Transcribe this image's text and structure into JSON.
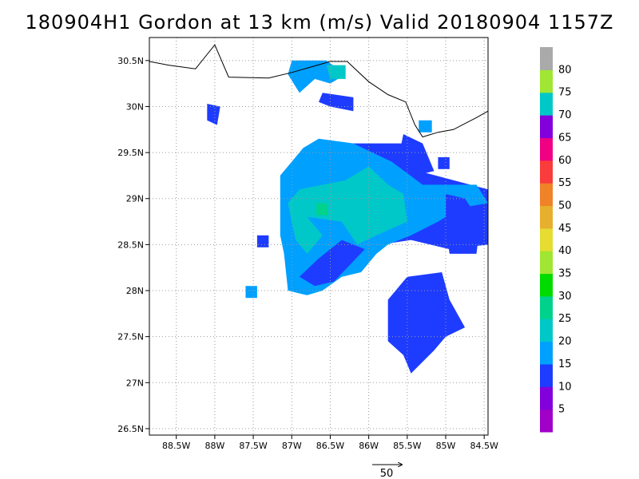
{
  "chart_data": {
    "type": "heatmap",
    "title": "180904H1 Gordon at 13 km (m/s) Valid 20180904 1157Z",
    "lon_range": [
      -88.85,
      -84.45
    ],
    "lat_range": [
      26.43,
      30.75
    ],
    "x_ticks": [
      {
        "value": -88.5,
        "label": "88.5W"
      },
      {
        "value": -88.0,
        "label": "88W"
      },
      {
        "value": -87.5,
        "label": "87.5W"
      },
      {
        "value": -87.0,
        "label": "87W"
      },
      {
        "value": -86.5,
        "label": "86.5W"
      },
      {
        "value": -86.0,
        "label": "86W"
      },
      {
        "value": -85.5,
        "label": "85.5W"
      },
      {
        "value": -85.0,
        "label": "85W"
      },
      {
        "value": -84.5,
        "label": "84.5W"
      }
    ],
    "y_ticks": [
      {
        "value": 30.5,
        "label": "30.5N"
      },
      {
        "value": 30.0,
        "label": "30N"
      },
      {
        "value": 29.5,
        "label": "29.5N"
      },
      {
        "value": 29.0,
        "label": "29N"
      },
      {
        "value": 28.5,
        "label": "28.5N"
      },
      {
        "value": 28.0,
        "label": "28N"
      },
      {
        "value": 27.5,
        "label": "27.5N"
      },
      {
        "value": 27.0,
        "label": "27N"
      },
      {
        "value": 26.5,
        "label": "26.5N"
      }
    ],
    "grid": true,
    "colorbar": {
      "levels": [
        5,
        10,
        15,
        20,
        25,
        30,
        35,
        40,
        45,
        50,
        55,
        60,
        65,
        70,
        75,
        80
      ],
      "labels": [
        "5",
        "10",
        "15",
        "20",
        "25",
        "30",
        "35",
        "40",
        "45",
        "50",
        "55",
        "60",
        "65",
        "70",
        "75",
        "80"
      ],
      "colors": [
        "#a000c8",
        "#8200dc",
        "#1e3cff",
        "#00a0ff",
        "#00c8c8",
        "#00d28c",
        "#00dc00",
        "#a0e632",
        "#e6dc32",
        "#e6af2d",
        "#f08228",
        "#fa3c3c",
        "#f00082",
        "#8200dc",
        "#00c8c8",
        "#a0e632",
        "#aaaaaa"
      ]
    },
    "coastline": [
      [
        -88.85,
        30.49
      ],
      [
        -88.6,
        30.45
      ],
      [
        -88.25,
        30.41
      ],
      [
        -88.0,
        30.67
      ],
      [
        -87.82,
        30.32
      ],
      [
        -87.3,
        30.31
      ],
      [
        -87.0,
        30.37
      ],
      [
        -86.5,
        30.49
      ],
      [
        -86.28,
        30.49
      ],
      [
        -86.0,
        30.27
      ],
      [
        -85.75,
        30.13
      ],
      [
        -85.52,
        30.05
      ],
      [
        -85.4,
        29.8
      ],
      [
        -85.3,
        29.67
      ],
      [
        -85.1,
        29.72
      ],
      [
        -84.9,
        29.75
      ],
      [
        -84.6,
        29.88
      ],
      [
        -84.45,
        29.95
      ]
    ],
    "wind_vector_reference": {
      "label": "50"
    },
    "regions": [
      {
        "bin": 10,
        "points": [
          [
            -86.2,
            29.6
          ],
          [
            -85.55,
            29.6
          ],
          [
            -85.35,
            29.3
          ],
          [
            -84.45,
            29.1
          ],
          [
            -84.45,
            28.5
          ],
          [
            -84.95,
            28.45
          ],
          [
            -85.45,
            28.55
          ],
          [
            -85.85,
            28.5
          ],
          [
            -86.25,
            28.3
          ],
          [
            -86.55,
            28.15
          ],
          [
            -86.85,
            28.0
          ],
          [
            -86.9,
            28.3
          ],
          [
            -86.7,
            28.3
          ],
          [
            -86.9,
            28.7
          ],
          [
            -86.95,
            29.2
          ],
          [
            -86.85,
            29.55
          ]
        ]
      },
      {
        "bin": 15,
        "points": [
          [
            -86.65,
            29.65
          ],
          [
            -86.2,
            29.6
          ],
          [
            -85.7,
            29.4
          ],
          [
            -85.3,
            29.15
          ],
          [
            -84.6,
            29.15
          ],
          [
            -84.45,
            28.95
          ],
          [
            -84.8,
            28.9
          ],
          [
            -85.1,
            28.75
          ],
          [
            -85.45,
            28.6
          ],
          [
            -85.75,
            28.5
          ],
          [
            -85.9,
            28.4
          ],
          [
            -86.1,
            28.2
          ],
          [
            -86.35,
            28.15
          ],
          [
            -86.6,
            28.0
          ],
          [
            -86.8,
            27.95
          ],
          [
            -87.05,
            28.0
          ],
          [
            -87.1,
            28.4
          ],
          [
            -87.15,
            28.6
          ],
          [
            -87.15,
            29.25
          ],
          [
            -86.85,
            29.55
          ]
        ]
      },
      {
        "bin": 20,
        "points": [
          [
            -86.6,
            29.15
          ],
          [
            -86.3,
            29.2
          ],
          [
            -86.0,
            29.35
          ],
          [
            -85.75,
            29.15
          ],
          [
            -85.55,
            29.05
          ],
          [
            -85.5,
            28.75
          ],
          [
            -85.9,
            28.6
          ],
          [
            -86.15,
            28.5
          ],
          [
            -86.35,
            28.75
          ],
          [
            -86.8,
            28.8
          ],
          [
            -86.6,
            28.6
          ],
          [
            -86.8,
            28.4
          ],
          [
            -86.95,
            28.55
          ],
          [
            -87.05,
            28.95
          ],
          [
            -86.9,
            29.1
          ]
        ]
      },
      {
        "bin": 25,
        "points": [
          [
            -86.68,
            28.95
          ],
          [
            -86.55,
            28.95
          ],
          [
            -86.52,
            28.82
          ],
          [
            -86.68,
            28.82
          ]
        ]
      },
      {
        "bin": 10,
        "points": [
          [
            -85.5,
            28.15
          ],
          [
            -85.05,
            28.2
          ],
          [
            -84.95,
            27.9
          ],
          [
            -84.75,
            27.6
          ],
          [
            -85.0,
            27.5
          ],
          [
            -85.15,
            27.35
          ],
          [
            -85.45,
            27.1
          ],
          [
            -85.55,
            27.3
          ],
          [
            -85.75,
            27.45
          ],
          [
            -85.75,
            27.9
          ]
        ]
      },
      {
        "bin": 10,
        "points": [
          [
            -85.0,
            29.05
          ],
          [
            -84.75,
            29.0
          ],
          [
            -84.55,
            28.75
          ],
          [
            -84.6,
            28.4
          ],
          [
            -84.95,
            28.4
          ],
          [
            -85.0,
            28.7
          ]
        ]
      },
      {
        "bin": 10,
        "points": [
          [
            -86.35,
            28.55
          ],
          [
            -86.05,
            28.45
          ],
          [
            -86.45,
            28.1
          ],
          [
            -86.7,
            28.05
          ],
          [
            -86.9,
            28.15
          ],
          [
            -86.65,
            28.35
          ]
        ]
      },
      {
        "bin": 10,
        "points": [
          [
            -85.55,
            29.7
          ],
          [
            -85.3,
            29.6
          ],
          [
            -85.15,
            29.3
          ],
          [
            -85.4,
            29.25
          ],
          [
            -85.6,
            29.5
          ]
        ]
      },
      {
        "bin": 15,
        "points": [
          [
            -87.0,
            30.5
          ],
          [
            -86.55,
            30.5
          ],
          [
            -86.3,
            30.35
          ],
          [
            -86.5,
            30.25
          ],
          [
            -86.7,
            30.3
          ],
          [
            -86.9,
            30.15
          ],
          [
            -87.05,
            30.35
          ]
        ]
      },
      {
        "bin": 20,
        "points": [
          [
            -86.55,
            30.45
          ],
          [
            -86.3,
            30.45
          ],
          [
            -86.3,
            30.3
          ],
          [
            -86.5,
            30.3
          ]
        ]
      },
      {
        "bin": 10,
        "points": [
          [
            -86.6,
            30.15
          ],
          [
            -86.2,
            30.1
          ],
          [
            -86.2,
            29.95
          ],
          [
            -86.5,
            30.0
          ],
          [
            -86.65,
            30.05
          ]
        ]
      },
      {
        "bin": 10,
        "points": [
          [
            -88.1,
            30.03
          ],
          [
            -87.93,
            30.0
          ],
          [
            -87.97,
            29.8
          ],
          [
            -88.1,
            29.85
          ]
        ]
      },
      {
        "bin": 10,
        "points": [
          [
            -87.45,
            28.6
          ],
          [
            -87.3,
            28.6
          ],
          [
            -87.3,
            28.47
          ],
          [
            -87.45,
            28.47
          ]
        ]
      },
      {
        "bin": 15,
        "points": [
          [
            -87.6,
            28.05
          ],
          [
            -87.45,
            28.05
          ],
          [
            -87.45,
            27.92
          ],
          [
            -87.6,
            27.92
          ]
        ]
      },
      {
        "bin": 15,
        "points": [
          [
            -85.35,
            29.85
          ],
          [
            -85.18,
            29.85
          ],
          [
            -85.18,
            29.72
          ],
          [
            -85.35,
            29.72
          ]
        ]
      },
      {
        "bin": 10,
        "points": [
          [
            -85.1,
            29.45
          ],
          [
            -84.95,
            29.45
          ],
          [
            -84.95,
            29.32
          ],
          [
            -85.1,
            29.32
          ]
        ]
      },
      {
        "bin": 15,
        "points": [
          [
            -87.12,
            29.2
          ],
          [
            -87.05,
            29.2
          ],
          [
            -87.05,
            29.05
          ],
          [
            -87.12,
            29.05
          ]
        ]
      }
    ]
  },
  "colorbar_labels": [
    "5",
    "10",
    "15",
    "20",
    "25",
    "30",
    "35",
    "40",
    "45",
    "50",
    "55",
    "60",
    "65",
    "70",
    "75",
    "80"
  ]
}
